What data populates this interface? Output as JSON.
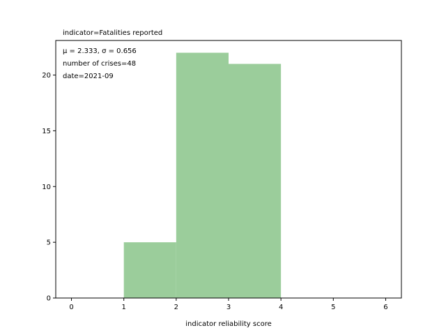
{
  "chart_data": {
    "type": "bar",
    "title": "indicator=Fatalities reported",
    "xlabel": "indicator reliability score",
    "ylabel": "",
    "bins": [
      {
        "start": 1,
        "end": 2,
        "value": 5
      },
      {
        "start": 2,
        "end": 3,
        "value": 22
      },
      {
        "start": 3,
        "end": 4,
        "value": 21
      }
    ],
    "xticks": [
      "0",
      "1",
      "2",
      "3",
      "4",
      "5",
      "6"
    ],
    "yticks": [
      "0",
      "5",
      "10",
      "15",
      "20"
    ],
    "xlim": [
      -0.3,
      6.3
    ],
    "ylim": [
      0,
      23.1
    ],
    "annotations": [
      "μ = 2.333,  σ = 0.656",
      "number of crises=48",
      "date=2021-09"
    ],
    "bar_color": "#9bcd9b",
    "grid": false
  }
}
